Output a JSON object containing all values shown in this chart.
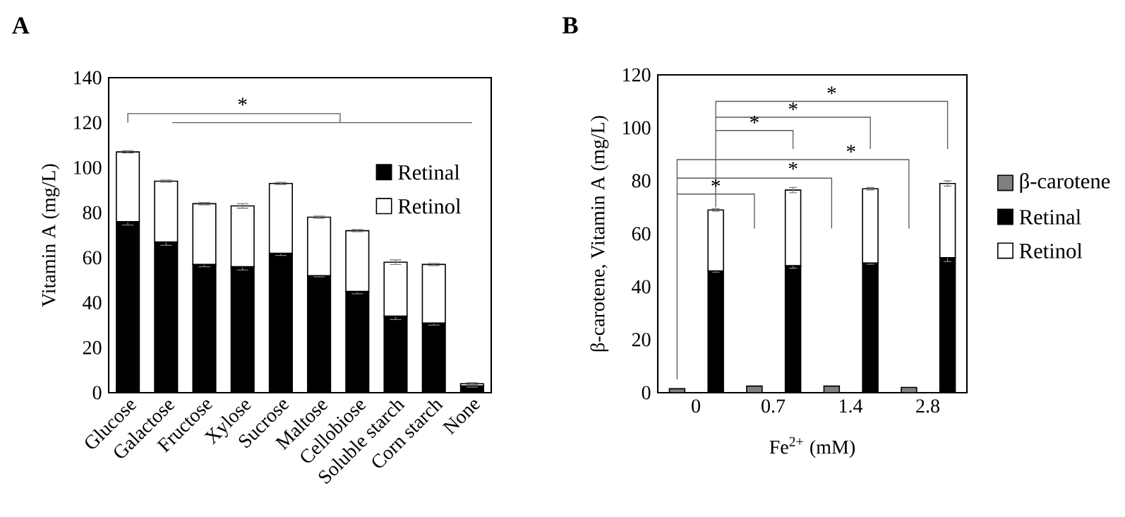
{
  "chart_data": [
    {
      "type": "bar",
      "title": "A",
      "ylabel": "Vitamin A (mg/L)",
      "stacked": true,
      "legend": "top right",
      "categories": [
        "Glucose",
        "Galactose",
        "Fructose",
        "Xylose",
        "Sucrose",
        "Maltose",
        "Cellobiose",
        "Soluble starch",
        "Corn starch",
        "None"
      ],
      "series": [
        {
          "name": "Retinal",
          "color": "#000000",
          "values": [
            76,
            67,
            57,
            56,
            62,
            52,
            45,
            34,
            31,
            3
          ],
          "errors": [
            1.5,
            1.5,
            1,
            1.5,
            1,
            0.5,
            1,
            1.5,
            1,
            0.5
          ]
        },
        {
          "name": "Retinol",
          "color": "#ffffff",
          "values": [
            31,
            27,
            27,
            27,
            31,
            26,
            27,
            24,
            26,
            1
          ],
          "errors": [
            0.5,
            0.5,
            0.5,
            1,
            0.5,
            0.5,
            0.5,
            1,
            0.5,
            0.5
          ]
        }
      ],
      "ylim": [
        0,
        140
      ],
      "yticks": [
        0,
        20,
        40,
        60,
        80,
        100,
        120,
        140
      ],
      "annotations": [
        "*"
      ]
    },
    {
      "type": "bar",
      "title": "B",
      "ylabel": "β-carotene, Vitamin A (mg/L)",
      "xlabel": "Fe$^{2+}$ (mM)",
      "stacked": true,
      "legend": "right",
      "categories": [
        "0",
        null,
        "0.7",
        null,
        "1.4",
        null,
        "2.8",
        null
      ],
      "series": [
        {
          "name": "β-carotene",
          "color": "#808080",
          "values": [
            1.5,
            null,
            2.5,
            null,
            2.5,
            null,
            2,
            null
          ]
        },
        {
          "name": "Retinal",
          "color": "#000000",
          "values": [
            null,
            46,
            null,
            48,
            null,
            49,
            null,
            51
          ],
          "errors": [
            null,
            0.5,
            null,
            1,
            null,
            0.5,
            null,
            1.5
          ]
        },
        {
          "name": "Retinol",
          "color": "#ffffff",
          "values": [
            null,
            23,
            null,
            28.5,
            null,
            28,
            null,
            28
          ],
          "errors": [
            null,
            0.5,
            null,
            1,
            null,
            0.5,
            null,
            1
          ]
        }
      ],
      "ylim": [
        0,
        120
      ],
      "yticks": [
        0,
        20,
        40,
        60,
        80,
        100,
        120
      ],
      "annotations": [
        "*",
        "*",
        "*",
        "*",
        "*",
        "*"
      ]
    }
  ]
}
